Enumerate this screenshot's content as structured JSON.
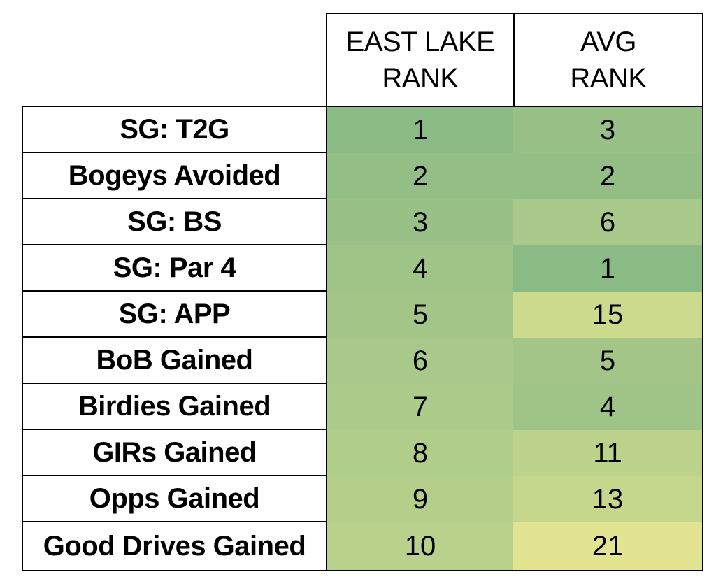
{
  "chart_data": {
    "type": "table",
    "columns": [
      {
        "line1": "EAST LAKE",
        "line2": "RANK"
      },
      {
        "line1": "AVG",
        "line2": "RANK"
      }
    ],
    "rows": [
      {
        "label": "SG: T2G",
        "east_lake_rank": "1",
        "avg_rank": "3"
      },
      {
        "label": "Bogeys Avoided",
        "east_lake_rank": "2",
        "avg_rank": "2"
      },
      {
        "label": "SG: BS",
        "east_lake_rank": "3",
        "avg_rank": "6"
      },
      {
        "label": "SG: Par 4",
        "east_lake_rank": "4",
        "avg_rank": "1"
      },
      {
        "label": "SG: APP",
        "east_lake_rank": "5",
        "avg_rank": "15"
      },
      {
        "label": "BoB Gained",
        "east_lake_rank": "6",
        "avg_rank": "5"
      },
      {
        "label": "Birdies Gained",
        "east_lake_rank": "7",
        "avg_rank": "4"
      },
      {
        "label": "GIRs Gained",
        "east_lake_rank": "8",
        "avg_rank": "11"
      },
      {
        "label": "Opps Gained",
        "east_lake_rank": "9",
        "avg_rank": "13"
      },
      {
        "label": "Good Drives Gained",
        "east_lake_rank": "10",
        "avg_rank": "21"
      }
    ],
    "color_scale": {
      "low_color": "#8bbb85",
      "high_color": "#e2e491"
    }
  }
}
